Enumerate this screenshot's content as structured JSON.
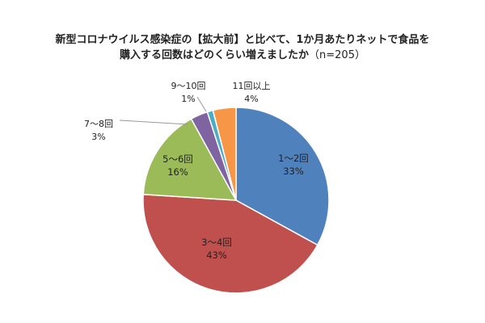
{
  "chart_data": {
    "type": "pie",
    "title_line1": "新型コロナウイルス感染症の【拡大前】と比べて、1か月あたりネットで食品を",
    "title_line2": "購入する回数はどのくらい増えましたか",
    "sample_size": "（n=205）",
    "slices": [
      {
        "label": "1〜2回",
        "value": 33,
        "pct_label": "33%",
        "color": "#4f81bd"
      },
      {
        "label": "3〜4回",
        "value": 43,
        "pct_label": "43%",
        "color": "#c0504d"
      },
      {
        "label": "5〜6回",
        "value": 16,
        "pct_label": "16%",
        "color": "#9bbb59"
      },
      {
        "label": "7〜8回",
        "value": 3,
        "pct_label": "3%",
        "color": "#8064a2"
      },
      {
        "label": "9〜10回",
        "value": 1,
        "pct_label": "1%",
        "color": "#4bacc6"
      },
      {
        "label": "11回以上",
        "value": 4,
        "pct_label": "4%",
        "color": "#f79646"
      }
    ]
  }
}
